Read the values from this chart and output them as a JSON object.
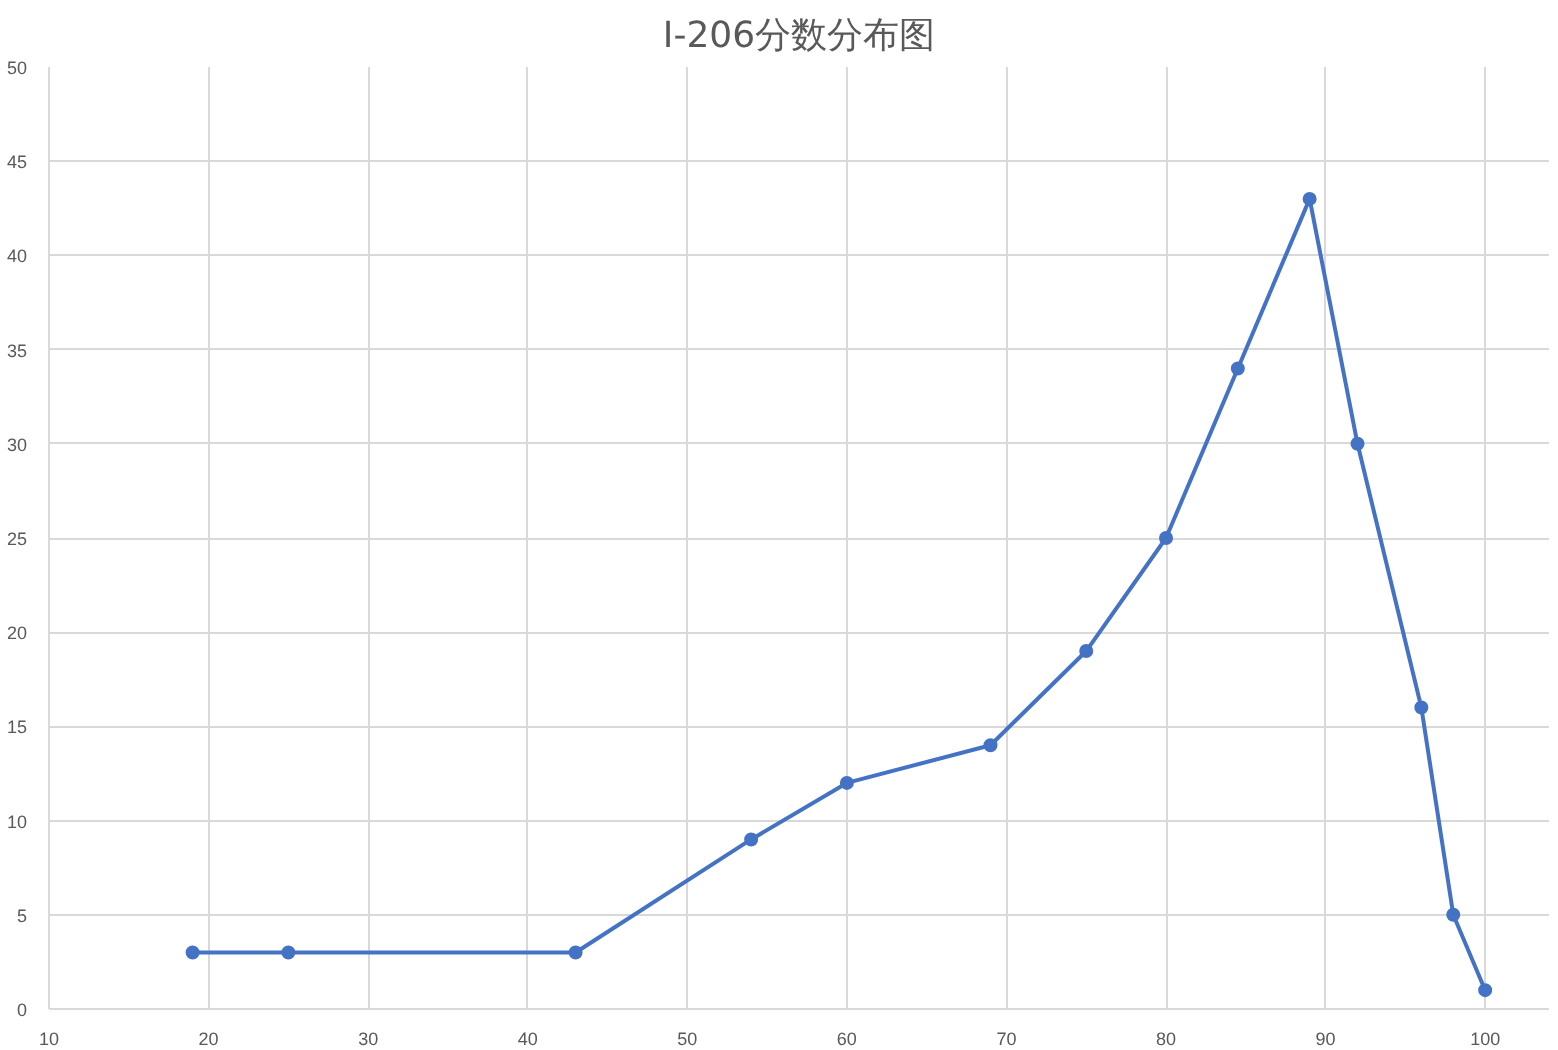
{
  "chart_data": {
    "type": "line",
    "title": "I-206分数分布图",
    "x": [
      19,
      25,
      43,
      54,
      60,
      69,
      75,
      80,
      84.5,
      89,
      92,
      96,
      98,
      100
    ],
    "series": [
      {
        "color": "#4472c4",
        "values": [
          3,
          3,
          3,
          9,
          12,
          14,
          19,
          25,
          34,
          43,
          30,
          16,
          5,
          1
        ]
      }
    ],
    "xlim": [
      10,
      104
    ],
    "xticks": [
      10,
      20,
      30,
      40,
      50,
      60,
      70,
      80,
      90,
      100
    ],
    "ylim": [
      0,
      50
    ],
    "yticks": [
      0,
      5,
      10,
      15,
      20,
      25,
      30,
      35,
      40,
      45,
      50
    ],
    "grid": true,
    "marker": "circle",
    "line_style": "solid"
  }
}
